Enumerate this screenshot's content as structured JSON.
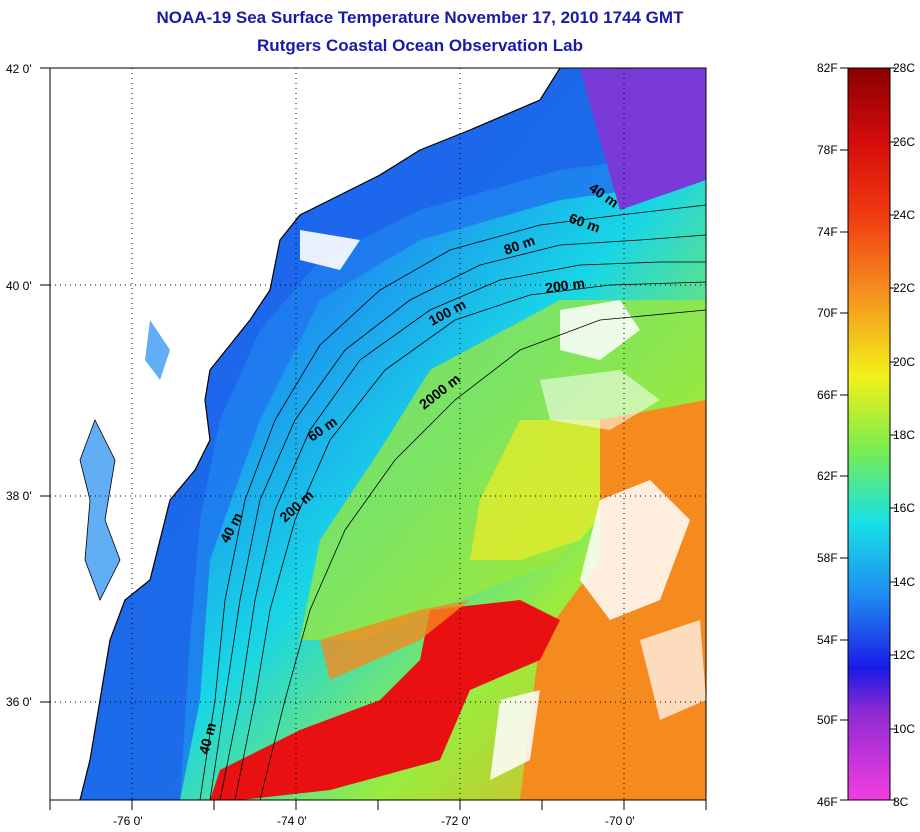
{
  "title": {
    "line1": "NOAA-19 Sea Surface Temperature November 17, 2010 1744 GMT",
    "line2": "Rutgers Coastal Ocean Observation Lab"
  },
  "map": {
    "lat_ticks": [
      "42 0'",
      "40 0'",
      "38 0'",
      "36 0'"
    ],
    "lon_ticks": [
      "-76 0'",
      "-74 0'",
      "-72 0'",
      "-70 0'"
    ],
    "lat_values": [
      42,
      40,
      38,
      36
    ],
    "lon_values": [
      -76,
      -74,
      -72,
      -70
    ],
    "lat_range": [
      35,
      42
    ],
    "lon_range": [
      -77,
      -69
    ],
    "contour_labels": [
      "40 m",
      "60 m",
      "200 m",
      "100 m",
      "80 m",
      "60 m",
      "40 m",
      "200 m",
      "2000 m",
      "40 m"
    ]
  },
  "colorbar": {
    "fahrenheit": [
      "82F",
      "78F",
      "74F",
      "70F",
      "66F",
      "62F",
      "58F",
      "54F",
      "50F",
      "46F"
    ],
    "celsius": [
      "28C",
      "26C",
      "24C",
      "22C",
      "20C",
      "18C",
      "16C",
      "14C",
      "12C",
      "10C",
      "8C"
    ],
    "colors": {
      "top": "#8b0000",
      "red": "#e81010",
      "orange": "#f58a1e",
      "yellow": "#f4f01a",
      "green": "#7cec4e",
      "cyan": "#18e2e6",
      "blue": "#1e8cf0",
      "deep_blue": "#1a1ae8",
      "purple": "#8e2ad2",
      "bottom": "#f23ee0"
    }
  },
  "colors": {
    "land": "#ffffff",
    "coast": "#000000",
    "title": "#1a1aa6"
  }
}
